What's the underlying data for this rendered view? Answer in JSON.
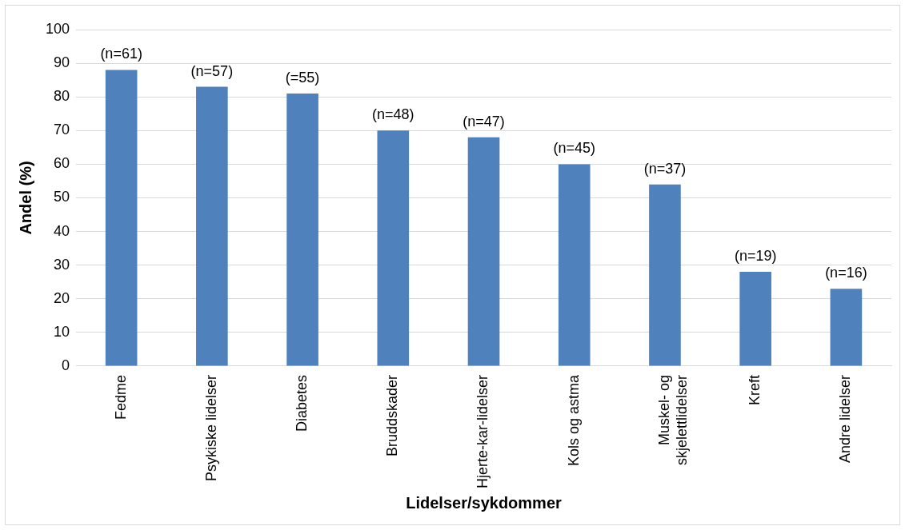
{
  "chart_data": {
    "type": "bar",
    "xlabel": "Lidelser/sykdommer",
    "ylabel": "Andel (%)",
    "categories": [
      "Fedme",
      "Psykiske lidelser",
      "Diabetes",
      "Bruddskader",
      "Hjerte-kar-lidelser",
      "Kols og astma",
      "Muskel- og\nskjelettlidelser",
      "Kreft",
      "Andre lidelser"
    ],
    "values": [
      88,
      83,
      81,
      70,
      68,
      60,
      54,
      28,
      23
    ],
    "annotations": [
      {
        "text": "(n=61)",
        "x": "Fedme",
        "y": 88
      },
      {
        "text": "(n=57)",
        "x": "Psykiske lidelser",
        "y": 83
      },
      {
        "text": "(=55)",
        "x": "Diabetes",
        "y": 81
      },
      {
        "text": "(n=48)",
        "x": "Bruddskader",
        "y": 70
      },
      {
        "text": "(n=47)",
        "x": "Hjerte-kar-lidelser",
        "y": 68
      },
      {
        "text": "(n=45)",
        "x": "Kols og astma",
        "y": 60
      },
      {
        "text": "(n=37)",
        "x": "Muskel- og\nskjelettlidelser",
        "y": 54
      },
      {
        "text": "(n=19)",
        "x": "Kreft",
        "y": 28
      },
      {
        "text": "(n=16)",
        "x": "Andre lidelser",
        "y": 23
      }
    ],
    "color": "#4f81bd",
    "ylim": [
      0,
      100
    ],
    "yticks": [
      0,
      10,
      20,
      30,
      40,
      50,
      60,
      70,
      80,
      90,
      100
    ],
    "grid": "y",
    "legend": false
  }
}
